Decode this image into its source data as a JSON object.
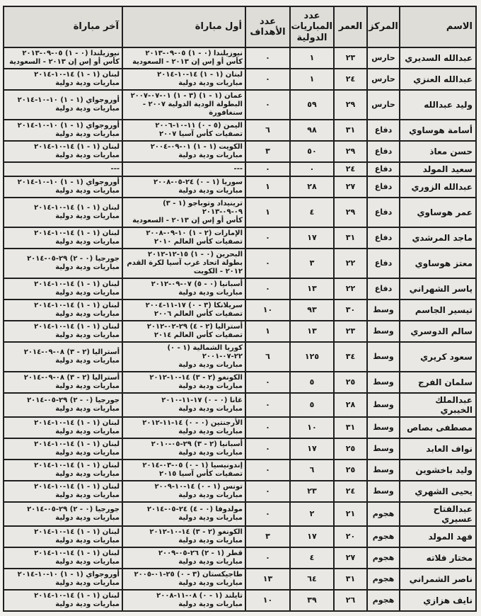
{
  "page": {
    "background": "#f2f1ed",
    "cell_background": "#e9e8e4",
    "border_color": "#1f1f1f",
    "text_color": "#161616"
  },
  "table": {
    "headers": {
      "name": "الاسم",
      "position": "المركز",
      "age": "العمر",
      "caps": "عدد المباريات الدولية",
      "goals": "عدد الأهداف",
      "first_match": "أول مباراة",
      "last_match": "آخر مباراة"
    },
    "rows": [
      {
        "name": "عبدالله السديري",
        "position": "حارس",
        "age": "٢٣",
        "caps": "١",
        "goals": "٠",
        "first_match": "نيوزيلندا (٠ - ١) ٠٥-٠٩-٢٠١٣",
        "first_comp": "كأس أو إس إن ٢٠١٣ - السعودية",
        "last_match": "نيوزيلندا (٠ - ١) ٠٥-٠٩-٢٠١٣",
        "last_comp": "كأس أو إس إن ٢٠١٣ - السعودية"
      },
      {
        "name": "عبدالله العنزي",
        "position": "حارس",
        "age": "٢٤",
        "caps": "١",
        "goals": "٠",
        "first_match": "لبنان (١ - ١) ١٤-١٠-٢٠١٤",
        "first_comp": "مباريات ودية دولية",
        "last_match": "لبنان (١ - ١) ١٤-١٠-٢٠١٤",
        "last_comp": "مباريات ودية دولية"
      },
      {
        "name": "وليد عبدالله",
        "position": "حارس",
        "age": "٢٩",
        "caps": "٥٩",
        "goals": "٠",
        "first_match": "عمان (١ - ١) (٣ - ١) ٠١-٠٧-٢٠٠٧",
        "first_comp": "البطولة الودية الدولية ٢٠٠٧ - سنغافورة",
        "last_match": "أوروجواي (١ - ١) ١٠-١٠-٢٠١٤",
        "last_comp": "مباريات ودية دولية"
      },
      {
        "name": "أسامة هوساوي",
        "position": "دفاع",
        "age": "٣١",
        "caps": "٩٨",
        "goals": "٦",
        "first_match": "اليمن (٥ - ٠) ١١-١٠-٢٠٠٦",
        "first_comp": "تصفيات كأس آسيا ٢٠٠٧",
        "last_match": "أوروجواي (١ - ١) ١٠-١٠-٢٠١٤",
        "last_comp": "مباريات ودية دولية"
      },
      {
        "name": "حسن معاذ",
        "position": "دفاع",
        "age": "٢٩",
        "caps": "٥٠",
        "goals": "٣",
        "first_match": "الكويت (١ - ١) ٠١-٠٩-٢٠٠٤",
        "first_comp": "مباريات ودية دولية",
        "last_match": "لبنان (١ - ١) ١٤-١٠-٢٠١٤",
        "last_comp": "مباريات ودية دولية"
      },
      {
        "name": "سعيد المولد",
        "position": "دفاع",
        "age": "٢٤",
        "caps": "٠",
        "goals": "٠",
        "first_match": "---",
        "first_comp": "",
        "last_match": "---",
        "last_comp": ""
      },
      {
        "name": "عبدالله الزوري",
        "position": "دفاع",
        "age": "٢٧",
        "caps": "٢٨",
        "goals": "١",
        "first_match": "سوريا (١ - ٠) ٢٤-٠٥-٢٠٠٨",
        "first_comp": "مباريات ودية دولية",
        "last_match": "أوروجواي (١ - ١) ١٠-١٠-٢٠١٤",
        "last_comp": "مباريات ودية دولية"
      },
      {
        "name": "عمر هوساوي",
        "position": "دفاع",
        "age": "٢٩",
        "caps": "٤",
        "goals": "١",
        "first_match": "ترينيداد وتوباجو (١ - ٣) ٠٩-٠٩-٢٠١٣",
        "first_comp": "كأس أو إس إن ٢٠١٣ - السعودية",
        "last_match": "لبنان (١ - ١) ١٤-١٠-٢٠١٤",
        "last_comp": "مباريات ودية دولية"
      },
      {
        "name": "ماجد المرشدي",
        "position": "دفاع",
        "age": "٣١",
        "caps": "١٧",
        "goals": "٠",
        "first_match": "الإمارات (٢ - ١) ١٠-٠٩-٢٠٠٨",
        "first_comp": "تصفيات كأس العالم ٢٠١٠",
        "last_match": "لبنان (١ - ١) ١٤-١٠-٢٠١٤",
        "last_comp": "مباريات ودية دولية"
      },
      {
        "name": "معتز هوساوي",
        "position": "دفاع",
        "age": "٢٢",
        "caps": "٣",
        "goals": "٠",
        "first_match": "البحرين (٠ - ١) ١٥-١٢-٢٠١٢",
        "first_comp": "بطولة اتحاد غرب آسيا لكرة القدم ٢٠١٢ - الكويت",
        "last_match": "جورجيا (٠ - ٢) ٢٩-٠٥-٢٠١٤",
        "last_comp": "مباريات ودية دولية"
      },
      {
        "name": "ياسر الشهراني",
        "position": "دفاع",
        "age": "٢٢",
        "caps": "١٣",
        "goals": "٠",
        "first_match": "أسبانيا (٠ - ٥) ٠٧-٠٩-٢٠١٢",
        "first_comp": "مباريات ودية دولية",
        "last_match": "لبنان (١ - ١) ١٤-١٠-٢٠١٤",
        "last_comp": "مباريات ودية دولية"
      },
      {
        "name": "تيسير الجاسم",
        "position": "وسط",
        "age": "٣٠",
        "caps": "٩٣",
        "goals": "١٠",
        "first_match": "سريلانكا (٣ - ٠) ١٧-١١-٢٠٠٤",
        "first_comp": "تصفيات كأس العالم ٢٠٠٦",
        "last_match": "لبنان (١ - ١) ١٤-١٠-٢٠١٤",
        "last_comp": "مباريات ودية دولية"
      },
      {
        "name": "سالم الدوسري",
        "position": "وسط",
        "age": "٢٣",
        "caps": "١٣",
        "goals": "١",
        "first_match": "أستراليا (٢ - ٤) ٢٩-٠٢-٢٠١٢",
        "first_comp": "تصفيات كأس العالم ٢٠١٤",
        "last_match": "لبنان (١ - ١) ١٤-١٠-٢٠١٤",
        "last_comp": "مباريات ودية دولية"
      },
      {
        "name": "سعود كريري",
        "position": "وسط",
        "age": "٣٤",
        "caps": "١٢٥",
        "goals": "٦",
        "first_match": "كوريا الشمالية (١ - ٠) ٢٢-٠٧-٢٠٠١",
        "first_comp": "مباريات ودية دولية",
        "last_match": "أستراليا (٢ - ٣) ٠٨-٠٩-٢٠١٤",
        "last_comp": "مباريات ودية دولية"
      },
      {
        "name": "سلمان الفرج",
        "position": "وسط",
        "age": "٢٥",
        "caps": "٥",
        "goals": "٠",
        "first_match": "الكونغو (٢ - ٣) ١٤-١٠-٢٠١٢",
        "first_comp": "مباريات ودية دولية",
        "last_match": "أستراليا (٢ - ٣) ٠٨-٠٩-٢٠١٤",
        "last_comp": "مباريات ودية دولية"
      },
      {
        "name": "عبدالملك الخيبري",
        "position": "وسط",
        "age": "٢٨",
        "caps": "٥",
        "goals": "٠",
        "first_match": "غانا (٠ - ٠) ١٧-١١-٢٠١٠",
        "first_comp": "مباريات ودية دولية",
        "last_match": "جورجيا (٠ - ٢) ٢٩-٠٥-٢٠١٤",
        "last_comp": "مباريات ودية دولية"
      },
      {
        "name": "مصطفى بصاص",
        "position": "وسط",
        "age": "٣١",
        "caps": "١٠",
        "goals": "٠",
        "first_match": "الأرجنتين (٠ - ٠) ١٤-١١-٢٠١٢",
        "first_comp": "مباريات ودية دولية",
        "last_match": "لبنان (١ - ١) ١٤-١٠-٢٠١٤",
        "last_comp": "مباريات ودية دولية"
      },
      {
        "name": "نواف العابد",
        "position": "وسط",
        "age": "٢٥",
        "caps": "١٧",
        "goals": "٠",
        "first_match": "أسبانيا (٢ - ٣) ٢٩-٠٥-٢٠١٠",
        "first_comp": "مباريات ودية دولية",
        "last_match": "لبنان (١ - ١) ١٤-١٠-٢٠١٤",
        "last_comp": "مباريات ودية دولية"
      },
      {
        "name": "وليد باخشوين",
        "position": "وسط",
        "age": "٢٥",
        "caps": "٦",
        "goals": "٠",
        "first_match": "إندونيسيا (١ - ٠) ٠٥-٠٣-٢٠١٤",
        "first_comp": "تصفيات كأس آسيا ٢٠١٥",
        "last_match": "لبنان (١ - ١) ١٤-١٠-٢٠١٤",
        "last_comp": "مباريات ودية دولية"
      },
      {
        "name": "يحيى الشهري",
        "position": "وسط",
        "age": "٢٤",
        "caps": "٢٣",
        "goals": "٠",
        "first_match": "تونس (١ - ٠) ١٤-١٠-٢٠٠٩",
        "first_comp": "مباريات ودية دولية",
        "last_match": "لبنان (١ - ١) ١٤-١٠-٢٠١٤",
        "last_comp": "مباريات ودية دولية"
      },
      {
        "name": "عبدالفتاح عسيري",
        "position": "هجوم",
        "age": "٢١",
        "caps": "٢",
        "goals": "٠",
        "first_match": "مولدوفا (٠ - ٤) ٢٤-٠٥-٢٠١٤",
        "first_comp": "مباريات ودية دولية",
        "last_match": "جورجيا (٠ - ٢) ٢٩-٠٥-٢٠١٤",
        "last_comp": "مباريات ودية دولية"
      },
      {
        "name": "فهد المولد",
        "position": "هجوم",
        "age": "٢٠",
        "caps": "١٧",
        "goals": "٣",
        "first_match": "الكونغو (٢ - ٣) ١٤-١٠-٢٠١٢",
        "first_comp": "مباريات ودية دولية",
        "last_match": "لبنان (١ - ١) ١٤-١٠-٢٠١٤",
        "last_comp": "مباريات ودية دولية"
      },
      {
        "name": "مختار فلاته",
        "position": "هجوم",
        "age": "٢٧",
        "caps": "٤",
        "goals": "٠",
        "first_match": "قطر (١ - ٢) ٢٦-٠٥-٢٠٠٩",
        "first_comp": "مباريات ودية دولية",
        "last_match": "لبنان (١ - ١) ١٤-١٠-٢٠١٤",
        "last_comp": "مباريات ودية دولية"
      },
      {
        "name": "ناصر الشمراني",
        "position": "هجوم",
        "age": "٣١",
        "caps": "٦٤",
        "goals": "١٣",
        "first_match": "طاجيكستان (٣ - ٠) ٢٥-٠١-٢٠٠٥",
        "first_comp": "مباريات ودية دولية",
        "last_match": "أوروجواي (١ - ١) ١٠-١٠-٢٠١٤",
        "last_comp": "مباريات ودية دولية"
      },
      {
        "name": "نايف هزازي",
        "position": "هجوم",
        "age": "٢٦",
        "caps": "٣٩",
        "goals": "١٠",
        "first_match": "تايلند (١ - ٠) ٠٨-١١-٢٠٠٨",
        "first_comp": "مباريات ودية دولية",
        "last_match": "لبنان (١ - ١) ١٤-١٠-٢٠١٤",
        "last_comp": "مباريات ودية دولية"
      }
    ]
  }
}
